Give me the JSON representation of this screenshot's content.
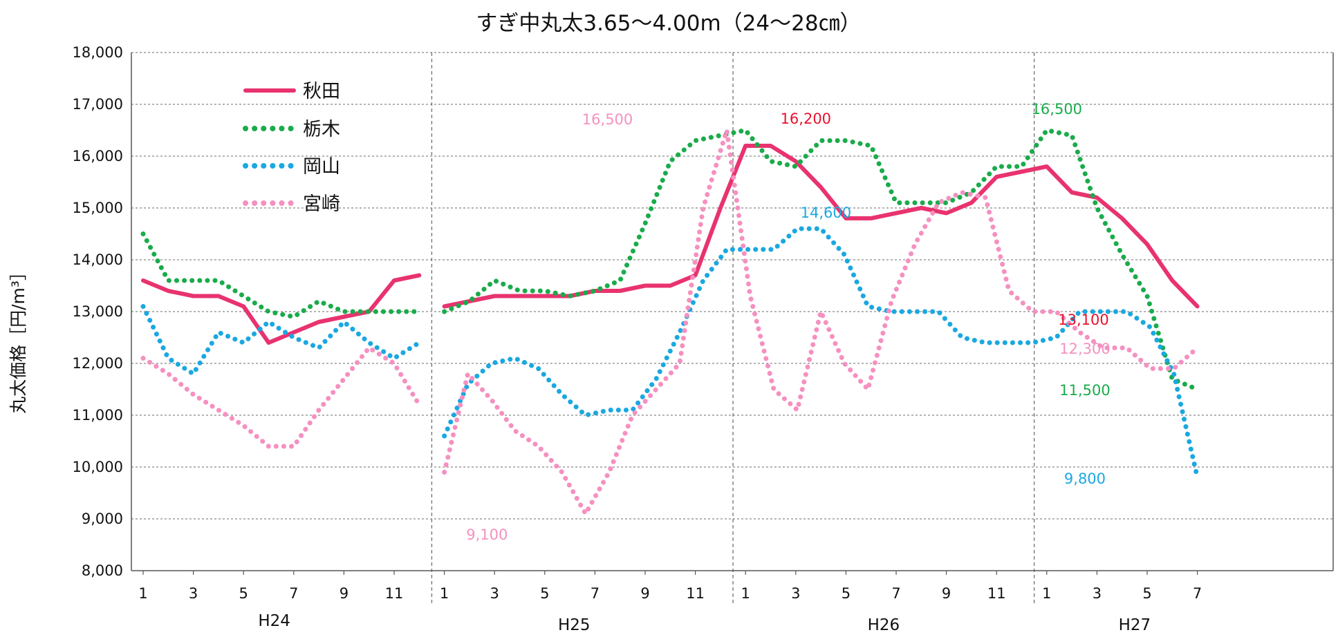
{
  "chart_data": {
    "type": "line",
    "title": "すぎ中丸太3.65～4.00m（24～28㎝）",
    "ylabel": "丸太価格［円/m³］",
    "ylim": [
      8000,
      18000
    ],
    "y_ticks": [
      "8,000",
      "9,000",
      "10,000",
      "11,000",
      "12,000",
      "13,000",
      "14,000",
      "15,000",
      "16,000",
      "17,000",
      "18,000"
    ],
    "x_tick_labels": [
      "1",
      "3",
      "5",
      "7",
      "9",
      "11",
      "1",
      "3",
      "5",
      "7",
      "9",
      "11",
      "1",
      "3",
      "5",
      "7",
      "9",
      "11",
      "1",
      "3",
      "5",
      "7"
    ],
    "years": [
      "H24",
      "H25",
      "H26",
      "H27"
    ],
    "grid": true,
    "legend_position": "top-left",
    "series": [
      {
        "name": "秋田",
        "color": "#e8336e",
        "style": "solid",
        "segments": [
          [
            13600,
            13400,
            13300,
            13300,
            13100,
            12400,
            12600,
            12800,
            12900,
            13000,
            13600,
            13700
          ],
          [
            13100,
            13200,
            13300,
            13300,
            13300,
            13300,
            13400,
            13400,
            13500,
            13500,
            13700,
            15000,
            16200,
            16200,
            15900,
            15400,
            14800,
            14800,
            14900,
            15000,
            14900,
            15100,
            15600,
            15700,
            15800,
            15300,
            15200,
            14800,
            14300,
            13600,
            13100
          ]
        ]
      },
      {
        "name": "栃木",
        "color": "#1aab4b",
        "style": "dotted",
        "segments": [
          [
            14500,
            13600,
            13600,
            13600,
            13300,
            13000,
            12900,
            13200,
            13000,
            13000,
            13000,
            13000
          ],
          [
            13000,
            13200,
            13600,
            13400,
            13400,
            13300,
            13400,
            13600,
            14700,
            15900,
            16300,
            16400,
            16500,
            15900,
            15800,
            16300,
            16300,
            16200,
            15100,
            15100,
            15100,
            15300,
            15800,
            15800,
            16500,
            16400,
            15000,
            14100,
            13300,
            11700,
            11500
          ]
        ]
      },
      {
        "name": "岡山",
        "color": "#1aa8e0",
        "style": "dotted",
        "segments": [
          [
            13100,
            12100,
            11800,
            12600,
            12400,
            12800,
            12500,
            12300,
            12800,
            12400,
            12100,
            12400
          ],
          [
            10600,
            11600,
            12000,
            12100,
            11900,
            11400,
            11000,
            11100,
            11100,
            11700,
            12600,
            13600,
            14200,
            14200,
            14200,
            14600,
            14600,
            14100,
            13100,
            13000,
            13000,
            13000,
            12500,
            12400,
            12400,
            12400,
            12500,
            13000,
            13000,
            13000,
            12700,
            11800,
            9800
          ]
        ]
      },
      {
        "name": "宮崎",
        "color": "#f590c0",
        "style": "dotted",
        "segments": [
          [
            12100,
            11800,
            11400,
            11100,
            10800,
            10400,
            10400,
            11100,
            11700,
            12300,
            12000,
            11200
          ],
          [
            9900,
            11800,
            11300,
            10700,
            10400,
            9900,
            9100,
            9900,
            11000,
            11500,
            12000,
            15000,
            16500,
            13300,
            11500,
            11100,
            13000,
            12000,
            11500,
            13200,
            14300,
            15100,
            15300,
            15200,
            13400,
            13000,
            13000,
            12600,
            12300,
            12300,
            11900,
            11900,
            12300
          ]
        ]
      }
    ],
    "annotations": [
      {
        "text": "16,200",
        "color": "#e8112d"
      },
      {
        "text": "13,100",
        "color": "#e8112d"
      },
      {
        "text": "16,500",
        "color": "#1aab4b"
      },
      {
        "text": "11,500",
        "color": "#1aab4b"
      },
      {
        "text": "14,600",
        "color": "#1aa8e0"
      },
      {
        "text": "9,800",
        "color": "#1aa8e0"
      },
      {
        "text": "16,500",
        "color": "#f590c0"
      },
      {
        "text": "9,100",
        "color": "#f590c0"
      },
      {
        "text": "12,300",
        "color": "#f590c0"
      }
    ]
  }
}
